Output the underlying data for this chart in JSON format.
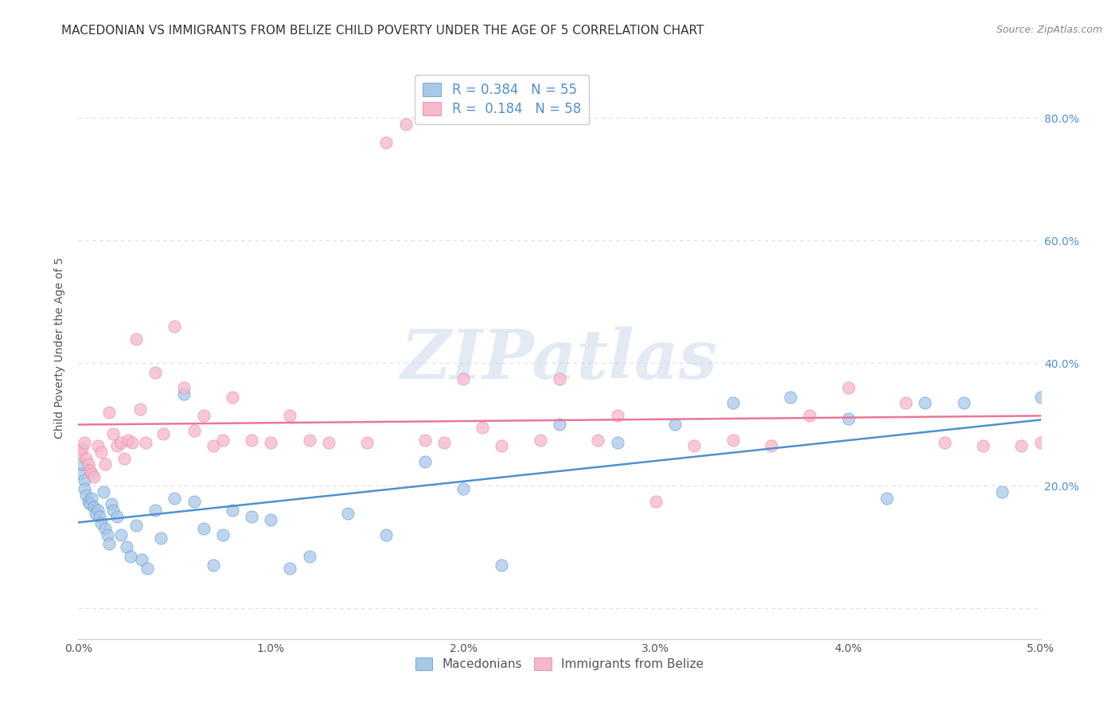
{
  "title": "MACEDONIAN VS IMMIGRANTS FROM BELIZE CHILD POVERTY UNDER THE AGE OF 5 CORRELATION CHART",
  "source": "Source: ZipAtlas.com",
  "ylabel": "Child Poverty Under the Age of 5",
  "xlim": [
    0.0,
    0.05
  ],
  "ylim": [
    -0.05,
    0.9
  ],
  "xticks": [
    0.0,
    0.01,
    0.02,
    0.03,
    0.04,
    0.05
  ],
  "xtick_labels": [
    "0.0%",
    "1.0%",
    "2.0%",
    "3.0%",
    "4.0%",
    "5.0%"
  ],
  "yticks": [
    0.0,
    0.2,
    0.4,
    0.6,
    0.8
  ],
  "ytick_labels_right": [
    "",
    "20.0%",
    "40.0%",
    "60.0%",
    "80.0%"
  ],
  "macedonian_R": 0.384,
  "macedonian_N": 55,
  "belize_R": 0.184,
  "belize_N": 58,
  "blue_color": "#a8c8e8",
  "pink_color": "#f5b8cc",
  "blue_line_color": "#5090d0",
  "pink_line_color": "#e87898",
  "macedonians_x": [
    0.0001,
    0.0002,
    0.0003,
    0.0003,
    0.0004,
    0.0005,
    0.0006,
    0.0007,
    0.0008,
    0.0009,
    0.001,
    0.0011,
    0.0012,
    0.0013,
    0.0014,
    0.0015,
    0.0016,
    0.0017,
    0.0018,
    0.002,
    0.0022,
    0.0025,
    0.0027,
    0.003,
    0.0033,
    0.0036,
    0.004,
    0.0043,
    0.005,
    0.0055,
    0.006,
    0.0065,
    0.007,
    0.0075,
    0.008,
    0.009,
    0.01,
    0.011,
    0.012,
    0.014,
    0.016,
    0.018,
    0.02,
    0.022,
    0.025,
    0.028,
    0.031,
    0.034,
    0.037,
    0.04,
    0.042,
    0.044,
    0.046,
    0.048,
    0.05
  ],
  "macedonians_y": [
    0.22,
    0.235,
    0.21,
    0.195,
    0.185,
    0.175,
    0.17,
    0.18,
    0.165,
    0.155,
    0.16,
    0.15,
    0.14,
    0.19,
    0.13,
    0.12,
    0.105,
    0.17,
    0.16,
    0.15,
    0.12,
    0.1,
    0.085,
    0.135,
    0.08,
    0.065,
    0.16,
    0.115,
    0.18,
    0.35,
    0.175,
    0.13,
    0.07,
    0.12,
    0.16,
    0.15,
    0.145,
    0.065,
    0.085,
    0.155,
    0.12,
    0.24,
    0.195,
    0.07,
    0.3,
    0.27,
    0.3,
    0.335,
    0.345,
    0.31,
    0.18,
    0.335,
    0.335,
    0.19,
    0.345
  ],
  "belize_x": [
    0.0001,
    0.0002,
    0.0003,
    0.0004,
    0.0005,
    0.0006,
    0.0007,
    0.0008,
    0.001,
    0.0012,
    0.0014,
    0.0016,
    0.0018,
    0.002,
    0.0022,
    0.0024,
    0.0026,
    0.0028,
    0.003,
    0.0032,
    0.0035,
    0.004,
    0.0044,
    0.005,
    0.0055,
    0.006,
    0.0065,
    0.007,
    0.0075,
    0.008,
    0.009,
    0.01,
    0.011,
    0.012,
    0.013,
    0.015,
    0.016,
    0.017,
    0.018,
    0.019,
    0.02,
    0.021,
    0.022,
    0.024,
    0.025,
    0.027,
    0.028,
    0.03,
    0.032,
    0.034,
    0.036,
    0.038,
    0.04,
    0.043,
    0.045,
    0.047,
    0.049,
    0.05
  ],
  "belize_y": [
    0.255,
    0.26,
    0.27,
    0.245,
    0.235,
    0.225,
    0.22,
    0.215,
    0.265,
    0.255,
    0.235,
    0.32,
    0.285,
    0.265,
    0.27,
    0.245,
    0.275,
    0.27,
    0.44,
    0.325,
    0.27,
    0.385,
    0.285,
    0.46,
    0.36,
    0.29,
    0.315,
    0.265,
    0.275,
    0.345,
    0.275,
    0.27,
    0.315,
    0.275,
    0.27,
    0.27,
    0.76,
    0.79,
    0.275,
    0.27,
    0.375,
    0.295,
    0.265,
    0.275,
    0.375,
    0.275,
    0.315,
    0.175,
    0.265,
    0.275,
    0.265,
    0.315,
    0.36,
    0.335,
    0.27,
    0.265,
    0.265,
    0.27
  ],
  "watermark": "ZIPatlas",
  "background_color": "#ffffff",
  "grid_color": "#dddddd",
  "title_fontsize": 11,
  "axis_label_fontsize": 10,
  "tick_fontsize": 10
}
